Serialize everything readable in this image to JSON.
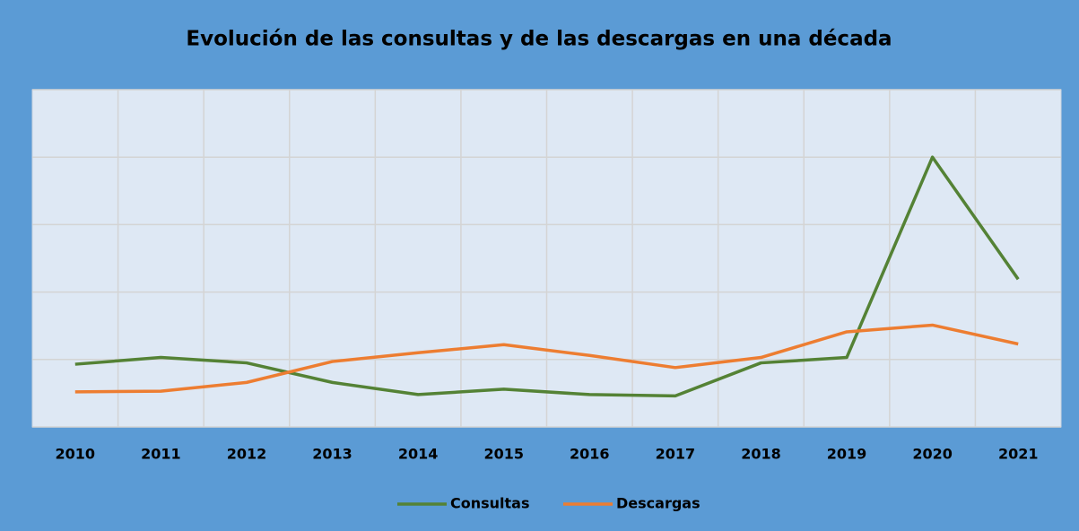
{
  "chart_data": {
    "type": "line",
    "title": "Evolución de las consultas y de las descargas en una década",
    "categories": [
      "2010",
      "2011",
      "2012",
      "2013",
      "2014",
      "2015",
      "2016",
      "2017",
      "2018",
      "2019",
      "2020",
      "2021"
    ],
    "series": [
      {
        "name": "Consultas",
        "color": "#548235",
        "values": [
          0.93,
          1.03,
          0.95,
          0.66,
          0.48,
          0.56,
          0.48,
          0.46,
          0.95,
          1.03,
          4.0,
          2.19
        ]
      },
      {
        "name": "Descargas",
        "color": "#ed7d31",
        "values": [
          0.52,
          0.53,
          0.66,
          0.97,
          1.1,
          1.22,
          1.06,
          0.88,
          1.03,
          1.41,
          1.51,
          1.23
        ]
      }
    ],
    "ylim": [
      0,
      5
    ],
    "yticks": [
      0,
      1,
      2,
      3,
      4,
      5
    ],
    "grid": true,
    "legend": "bottom"
  }
}
